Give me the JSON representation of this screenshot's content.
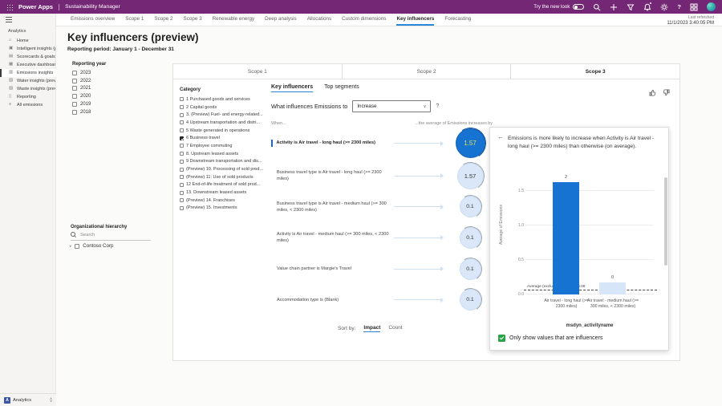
{
  "topbar": {
    "brand": "Power Apps",
    "app": "Sustainability Manager",
    "try_new_look": "Try the new look",
    "icons": [
      "search",
      "add",
      "filter",
      "notifications",
      "settings",
      "help",
      "apps",
      "account"
    ]
  },
  "tabstrip": {
    "tabs": [
      "Emissions overview",
      "Scope 1",
      "Scope 2",
      "Scope 3",
      "Renewable energy",
      "Deep analysis",
      "Allocations",
      "Custom dimensions",
      "Key influencers",
      "Forecasting"
    ],
    "active_index": 8,
    "last_refreshed_label": "Last refreshed",
    "last_refreshed_value": "11/1/2023 3:40:05 PM"
  },
  "sidebar": {
    "section": "Analytics",
    "active_index": 4,
    "items": [
      {
        "label": "Home",
        "icon": "⌂",
        "name": "home"
      },
      {
        "label": "Intelligent insights (p...",
        "icon": "▣",
        "name": "intelligent-insights"
      },
      {
        "label": "Scorecards & goals",
        "icon": "▤",
        "name": "scorecards-goals"
      },
      {
        "label": "Executive dashboard",
        "icon": "▦",
        "name": "executive-dashboard"
      },
      {
        "label": "Emissions insights",
        "icon": "▥",
        "name": "emissions-insights"
      },
      {
        "label": "Water insights (previ...",
        "icon": "▧",
        "name": "water-insights"
      },
      {
        "label": "Waste insights (previ...",
        "icon": "▨",
        "name": "waste-insights"
      },
      {
        "label": "Reporting",
        "icon": "▯",
        "name": "reporting"
      },
      {
        "label": "All emissions",
        "icon": "≡",
        "name": "all-emissions"
      }
    ],
    "footer": {
      "initial": "A",
      "label": "Analytics"
    }
  },
  "page": {
    "title": "Key influencers (preview)",
    "subtitle": "Reporting period: January 1 - December 31"
  },
  "filters": {
    "reporting_year": {
      "label": "Reporting year",
      "options": [
        "2023",
        "2022",
        "2021",
        "2020",
        "2019",
        "2018"
      ]
    },
    "org_hierarchy": {
      "label": "Organizational hierarchy",
      "search_placeholder": "Search",
      "tree_item": "Contoso Corp"
    }
  },
  "scopes": {
    "tabs": [
      "Scope 1",
      "Scope 2",
      "Scope 3"
    ],
    "active_index": 2
  },
  "category": {
    "label": "Category",
    "items": [
      {
        "label": "1 Purchased goods and services",
        "checked": false
      },
      {
        "label": "2 Capital goods",
        "checked": false
      },
      {
        "label": "3. (Preview) Fuel- and energy-related...",
        "checked": false
      },
      {
        "label": "4 Upstream transportation and distri...",
        "checked": false
      },
      {
        "label": "5 Waste generated in operations",
        "checked": false
      },
      {
        "label": "6 Business travel",
        "checked": true
      },
      {
        "label": "7 Employee commuting",
        "checked": false
      },
      {
        "label": "8. Upstream leased assets",
        "checked": false
      },
      {
        "label": "9 Downstream transportation and dis...",
        "checked": false
      },
      {
        "label": "(Preview) 10. Processing of sold prod...",
        "checked": false
      },
      {
        "label": "(Preview) 11: Use of sold products",
        "checked": false
      },
      {
        "label": "12 End-of-life treatment of sold prod...",
        "checked": false
      },
      {
        "label": "13. Downstream leased assets",
        "checked": false
      },
      {
        "label": "(Preview) 14. Franchises",
        "checked": false
      },
      {
        "label": "(Preview) 15. Investments",
        "checked": false
      }
    ]
  },
  "influencers": {
    "tabs": [
      "Key influencers",
      "Top segments"
    ],
    "active_tab_index": 0,
    "question_prefix": "What influences Emissions to",
    "dropdown_value": "Increase",
    "question_suffix": "?",
    "when_label": "When...",
    "effect_label": "...the average of Emissions increases by",
    "items": [
      {
        "text": "Activity is Air travel - long haul (>= 2300 miles)",
        "value": "1.57",
        "selected": true
      },
      {
        "text": "Business travel type is Air travel - long haul (>= 2300 miles)",
        "value": "1.57",
        "selected": false
      },
      {
        "text": "Business travel type is Air travel - medium haul (>= 300 miles, < 2300 miles)",
        "value": "0.1",
        "selected": false
      },
      {
        "text": "Activity is Air travel - medium haul (>= 300 miles, < 2300 miles)",
        "value": "0.1",
        "selected": false
      },
      {
        "text": "Value chain partner is Margie's Travel",
        "value": "0.1",
        "selected": false
      },
      {
        "text": "Accommodation type is (Blank)",
        "value": "0.1",
        "selected": false
      }
    ],
    "sort_label": "Sort by:",
    "sort_options": [
      "Impact",
      "Count"
    ],
    "sort_active_index": 0
  },
  "detail": {
    "text": "Emissions is more likely to increase when Activity is Air travel - long haul (>= 2300 miles) than otherwise (on average).",
    "checkbox_label": "Only show values that are influencers",
    "checkbox_checked": true
  },
  "chart_data": {
    "type": "bar",
    "title": "Emissions is more likely to increase when Activity is Air travel - long haul (>= 2300 miles) than otherwise (on average).",
    "categories": [
      "Air travel - long haul (>= 2300 miles)",
      "Air travel - medium haul (>= 300 miles, < 2300 miles)"
    ],
    "values": [
      1.63,
      0.17
    ],
    "bar_labels": [
      "2",
      "0"
    ],
    "ylabel": "Average of Emissions",
    "xlabel": "msdyn_activityname",
    "yticks": [
      "0.0",
      "0.5",
      "1.0",
      "1.5"
    ],
    "ylim": [
      0,
      1.75
    ],
    "grid": true,
    "legend": false,
    "avg_line": {
      "label": "Average (excluding selected) 0.06",
      "value": 0.06
    },
    "colors": {
      "selected_bar": "#1673d2",
      "comparison_bar": "#d6e6f8"
    }
  }
}
